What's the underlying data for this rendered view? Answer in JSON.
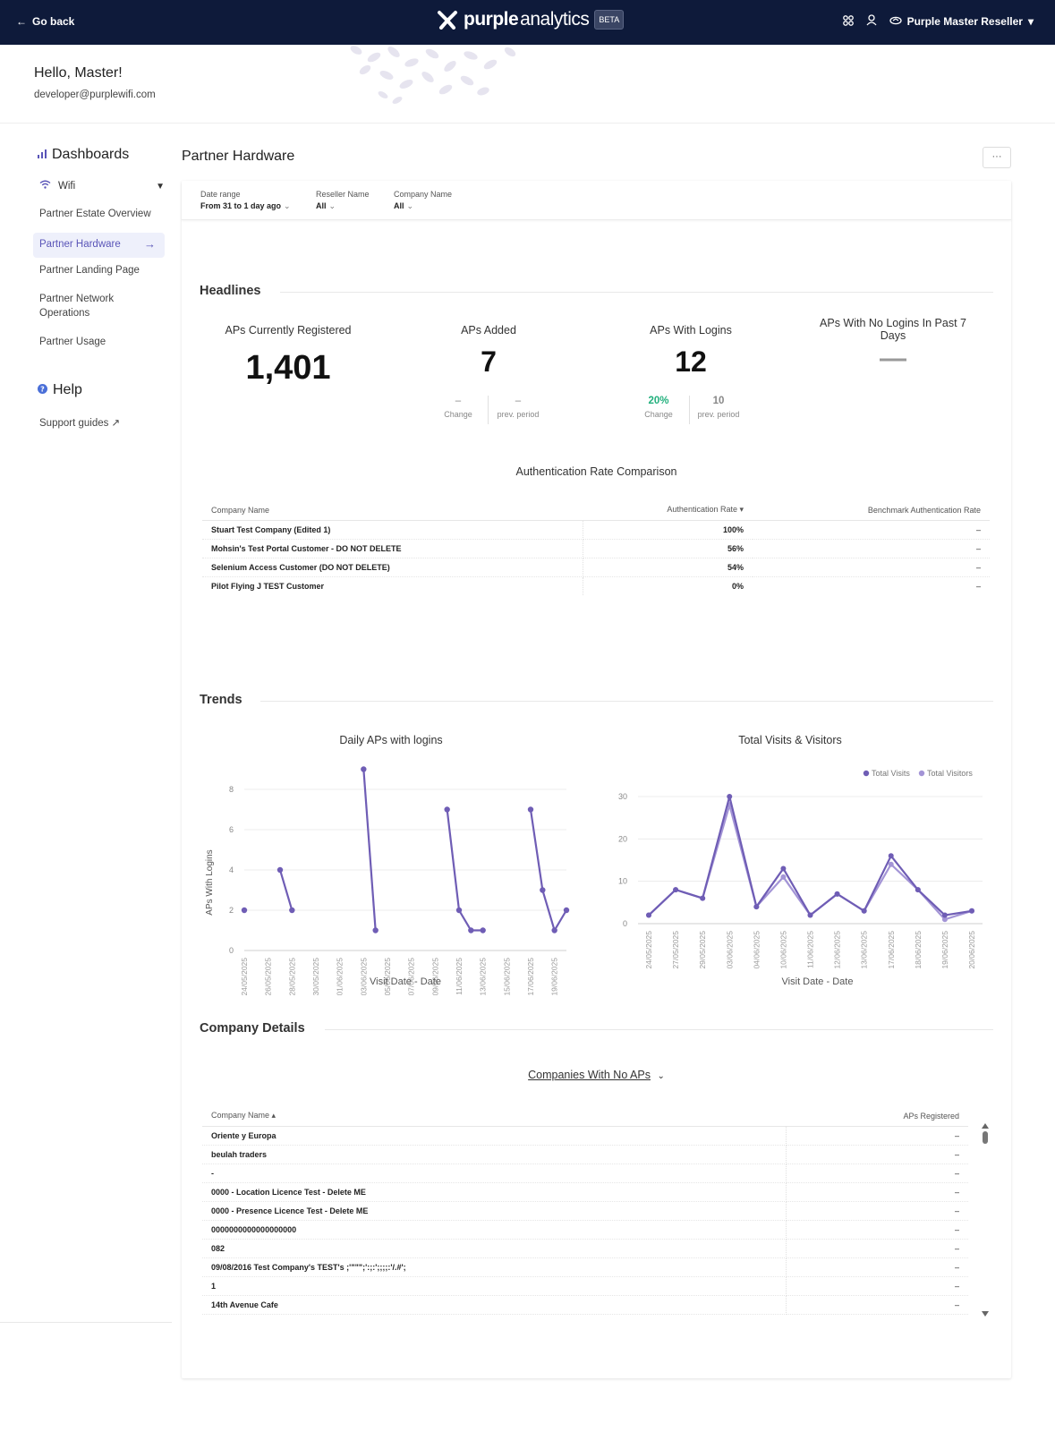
{
  "topbar": {
    "go_back": "Go back",
    "brand_purple": "purple",
    "brand_analytics": "analytics",
    "beta": "BETA",
    "account": "Purple Master Reseller"
  },
  "welcome": {
    "hello": "Hello, Master!",
    "email": "developer@purplewifi.com"
  },
  "sidebar": {
    "dashboards": "Dashboards",
    "wifi": "Wifi",
    "items": [
      "Partner Estate Overview",
      "Partner Hardware",
      "Partner Landing Page",
      "Partner Network",
      "Operations",
      "Partner Usage"
    ],
    "help": "Help",
    "support": "Support guides ↗"
  },
  "page": {
    "title": "Partner Hardware",
    "more": "···"
  },
  "filters": [
    {
      "label": "Date range",
      "value": "From 31 to 1 day ago"
    },
    {
      "label": "Reseller Name",
      "value": "All"
    },
    {
      "label": "Company Name",
      "value": "All"
    }
  ],
  "headlines": {
    "title": "Headlines",
    "kpis": [
      {
        "label": "APs Currently Registered",
        "value": "1,401"
      },
      {
        "label": "APs Added",
        "value": "7",
        "change": "–",
        "change_label": "Change",
        "prev": "–",
        "prev_label": "prev. period"
      },
      {
        "label": "APs With Logins",
        "value": "12",
        "change": "20%",
        "change_label": "Change",
        "prev": "10",
        "prev_label": "prev. period"
      },
      {
        "label": "APs With No Logins In Past 7 Days",
        "value": "—"
      }
    ]
  },
  "auth": {
    "title": "Authentication Rate Comparison",
    "headers": [
      "Company Name",
      "Authentication Rate ▾",
      "Benchmark Authentication Rate"
    ],
    "rows": [
      [
        "Stuart Test Company (Edited 1)",
        "100%",
        "–"
      ],
      [
        "Mohsin's Test Portal Customer - DO NOT DELETE",
        "56%",
        "–"
      ],
      [
        "Selenium Access Customer (DO NOT DELETE)",
        "54%",
        "–"
      ],
      [
        "Pilot Flying J TEST Customer",
        "0%",
        "–"
      ]
    ]
  },
  "trends": {
    "title": "Trends",
    "chart1_title": "Daily APs with logins",
    "chart2_title": "Total Visits & Visitors"
  },
  "chart_data": [
    {
      "type": "line",
      "title": "Daily APs with logins",
      "xlabel": "Visit Date - Date",
      "ylabel": "APs With Logins",
      "ylim": [
        0,
        8
      ],
      "yticks": [
        0,
        2,
        4,
        6,
        8
      ],
      "x_ticks": [
        "24/05/2025",
        "26/05/2025",
        "28/05/2025",
        "30/05/2025",
        "01/06/2025",
        "03/06/2025",
        "05/06/2025",
        "07/06/2025",
        "09/06/2025",
        "11/06/2025",
        "13/06/2025",
        "15/06/2025",
        "17/06/2025",
        "19/06/2025"
      ],
      "segments": [
        [
          {
            "x": "24/05/2025",
            "y": 2
          }
        ],
        [
          {
            "x": "27/05/2025",
            "y": 4
          },
          {
            "x": "28/05/2025",
            "y": 2
          }
        ],
        [
          {
            "x": "03/06/2025",
            "y": 9
          },
          {
            "x": "04/06/2025",
            "y": 1
          }
        ],
        [
          {
            "x": "10/06/2025",
            "y": 7
          },
          {
            "x": "11/06/2025",
            "y": 2
          },
          {
            "x": "12/06/2025",
            "y": 1
          },
          {
            "x": "13/06/2025",
            "y": 1
          }
        ],
        [
          {
            "x": "17/06/2025",
            "y": 7
          },
          {
            "x": "18/06/2025",
            "y": 3
          },
          {
            "x": "19/06/2025",
            "y": 1
          },
          {
            "x": "20/06/2025",
            "y": 2
          }
        ]
      ],
      "color": "#6f5db5",
      "grid": true
    },
    {
      "type": "line",
      "title": "Total Visits & Visitors",
      "xlabel": "Visit Date - Date",
      "ylim": [
        0,
        30
      ],
      "yticks": [
        0,
        10,
        20,
        30
      ],
      "categories": [
        "24/05/2025",
        "27/05/2025",
        "29/05/2025",
        "03/06/2025",
        "04/06/2025",
        "10/06/2025",
        "11/06/2025",
        "12/06/2025",
        "13/06/2025",
        "17/06/2025",
        "18/06/2025",
        "19/06/2025",
        "20/06/2025"
      ],
      "series": [
        {
          "name": "Total Visits",
          "values": [
            2,
            8,
            6,
            30,
            4,
            13,
            2,
            7,
            3,
            16,
            8,
            2,
            3
          ],
          "color": "#6f5db5"
        },
        {
          "name": "Total Visitors",
          "values": [
            2,
            8,
            6,
            28,
            4,
            11,
            2,
            7,
            3,
            14,
            8,
            1,
            3
          ],
          "color": "#a394d6"
        }
      ],
      "legend": "top-right",
      "grid": true
    }
  ],
  "company": {
    "title": "Company Details",
    "dropdown": "Companies With No APs",
    "headers": [
      "Company Name ▴",
      "APs Registered"
    ],
    "rows": [
      [
        "Oriente y Europa",
        "–"
      ],
      [
        "beulah traders",
        "–"
      ],
      [
        "-",
        "–"
      ],
      [
        "0000 - Location Licence Test - Delete ME",
        "–"
      ],
      [
        "0000 - Presence Licence Test - Delete ME",
        "–"
      ],
      [
        "0000000000000000000",
        "–"
      ],
      [
        "082",
        "–"
      ],
      [
        "09/08/2016 Test Company's TEST's ;'\"\"\";':;:';;;;:'/.#';",
        "–"
      ],
      [
        "1",
        "–"
      ],
      [
        "14th Avenue Cafe",
        "–"
      ]
    ]
  },
  "colors": {
    "topbar": "#0e1a3a",
    "accent": "#6f5db5",
    "accent_light": "#a394d6",
    "positive": "#22b07d"
  }
}
